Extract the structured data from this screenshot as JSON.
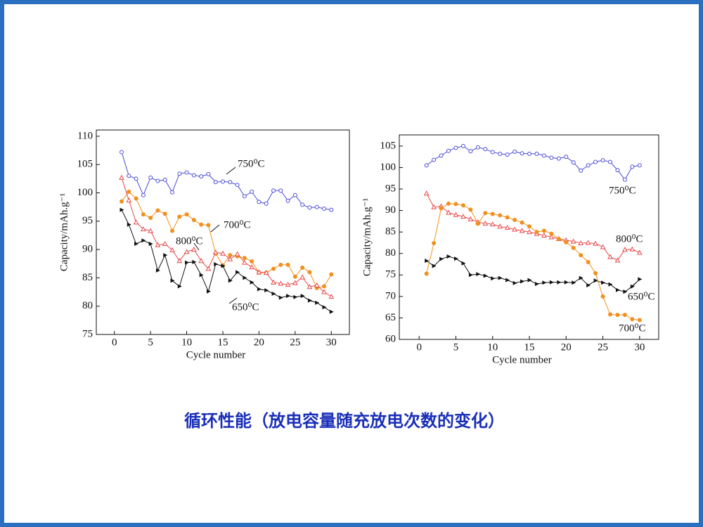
{
  "chart_data": [
    {
      "type": "line",
      "x_label": "Cycle number",
      "y_label": "Capacity/mAh.g⁻¹",
      "xlim": [
        -2.5,
        32.5
      ],
      "xticks": [
        0,
        5,
        10,
        15,
        20,
        25,
        30
      ],
      "ylim": [
        75,
        111.1
      ],
      "yticks": [
        75,
        80,
        85,
        90,
        95,
        100,
        105,
        110
      ],
      "x": [
        1,
        2,
        3,
        4,
        5,
        6,
        7,
        8,
        9,
        10,
        11,
        12,
        13,
        14,
        15,
        16,
        17,
        18,
        19,
        20,
        21,
        22,
        23,
        24,
        25,
        26,
        27,
        28,
        29,
        30
      ],
      "series": [
        {
          "name": "750⁰C",
          "color": "#4a4ad8",
          "marker": "circle-open",
          "values": [
            107.2,
            103,
            102.5,
            99.6,
            102.7,
            102.1,
            102.3,
            100.1,
            103.4,
            103.6,
            103.1,
            102.9,
            103.3,
            101.9,
            102,
            101.9,
            101.4,
            99.4,
            100.2,
            98.4,
            98.1,
            100.4,
            100.4,
            98.6,
            99.6,
            97.9,
            97.4,
            97.5,
            97.2,
            97
          ]
        },
        {
          "name": "700⁰C",
          "color": "#f0901e",
          "marker": "circle-filled",
          "values": [
            98.5,
            100.2,
            99,
            96.2,
            95.6,
            96.9,
            96.3,
            93.3,
            95.8,
            96.2,
            95.2,
            94.4,
            94.3,
            89.3,
            87.2,
            89,
            88.8,
            88.5,
            87.9,
            85.9,
            85.9,
            86.6,
            87.3,
            87.3,
            85.2,
            86.8,
            86,
            83.2,
            83.5,
            85.6
          ]
        },
        {
          "name": "800⁰C",
          "color": "#e84848",
          "marker": "triangle-open",
          "values": [
            102.7,
            98.7,
            94.8,
            93.6,
            93.3,
            90.8,
            91,
            89.9,
            88,
            89.6,
            90,
            88,
            86.6,
            89.5,
            89.3,
            88.3,
            89.2,
            87.7,
            86.9,
            86,
            85.9,
            84.2,
            84,
            83.8,
            84.1,
            85.1,
            83.4,
            83.7,
            82.5,
            81.7
          ]
        },
        {
          "name": "650⁰C",
          "color": "#111111",
          "marker": "triangle-filled",
          "values": [
            97,
            94.4,
            91,
            91.6,
            91,
            86.3,
            89,
            84.5,
            83.5,
            87.7,
            87.8,
            85.5,
            82.6,
            87.4,
            87.1,
            84.5,
            86,
            85,
            84.2,
            83,
            82.8,
            82.2,
            81.5,
            81.8,
            81.6,
            81.8,
            81,
            80.6,
            79.8,
            79
          ]
        }
      ]
    },
    {
      "type": "line",
      "x_label": "Cycle number",
      "y_label": "Capacity/mAh.g⁻¹",
      "xlim": [
        -2.7,
        32.6
      ],
      "xticks": [
        0,
        5,
        10,
        15,
        20,
        25,
        30
      ],
      "ylim": [
        60,
        107.6
      ],
      "yticks": [
        60,
        65,
        70,
        75,
        80,
        85,
        90,
        95,
        100,
        105
      ],
      "x": [
        1,
        2,
        3,
        4,
        5,
        6,
        7,
        8,
        9,
        10,
        11,
        12,
        13,
        14,
        15,
        16,
        17,
        18,
        19,
        20,
        21,
        22,
        23,
        24,
        25,
        26,
        27,
        28,
        29,
        30
      ],
      "series": [
        {
          "name": "750⁰C",
          "color": "#4a4ad8",
          "marker": "circle-open",
          "values": [
            100.5,
            101.8,
            102.8,
            103.9,
            104.6,
            105,
            103.8,
            104.7,
            104.3,
            103.6,
            103.2,
            103,
            103.7,
            103.3,
            103.2,
            103.2,
            102.8,
            102.3,
            102.1,
            102.5,
            101.2,
            99.3,
            100.5,
            101.3,
            101.7,
            101.3,
            99.4,
            97.2,
            100.2,
            100.5
          ]
        },
        {
          "name": "800⁰C",
          "color": "#e84848",
          "marker": "triangle-open",
          "values": [
            94,
            90.8,
            91,
            89.5,
            89,
            88.6,
            88,
            87.3,
            87,
            86.8,
            86.3,
            86,
            85.6,
            85.3,
            85,
            84.6,
            84.2,
            83.8,
            83.4,
            83.1,
            82.8,
            82.4,
            82.5,
            82.3,
            81.5,
            79.2,
            78.4,
            80.9,
            81,
            80.2
          ]
        },
        {
          "name": "650⁰C",
          "color": "#111111",
          "marker": "triangle-filled",
          "values": [
            78.3,
            77.1,
            78.7,
            79.3,
            78.8,
            77.7,
            75,
            75.2,
            74.8,
            74.2,
            74.3,
            73.8,
            73.1,
            73.5,
            73.8,
            72.9,
            73.2,
            73.3,
            73.3,
            73.3,
            73.2,
            74.3,
            72.6,
            73.7,
            73.2,
            72.8,
            71.5,
            71.1,
            72.3,
            74
          ]
        },
        {
          "name": "700⁰C",
          "color": "#f0901e",
          "marker": "circle-filled",
          "values": [
            75.3,
            82.4,
            90.5,
            91.6,
            91.5,
            91.2,
            90.2,
            86.9,
            89.4,
            89.2,
            88.9,
            88.4,
            87.8,
            87.2,
            86.3,
            85,
            85.3,
            84.6,
            83.4,
            82.6,
            81.3,
            79.6,
            78,
            75.4,
            70,
            65.8,
            65.7,
            65.7,
            64.7,
            64.5
          ]
        }
      ]
    }
  ],
  "caption": "循环性能（放电容量随充放电次数的变化）"
}
